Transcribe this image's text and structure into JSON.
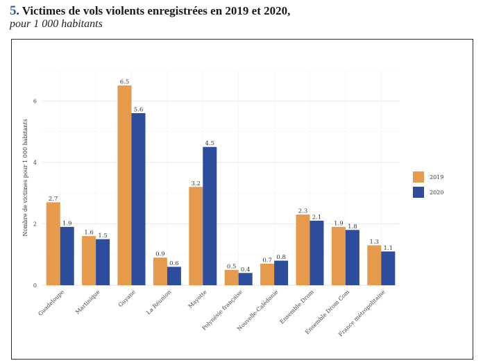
{
  "header": {
    "number": "5",
    "title": ". Victimes de vols violents enregistrées en 2019 et 2020,",
    "subtitle": "pour 1 000 habitants"
  },
  "colors": {
    "series_2019": "#e59a4c",
    "series_2020": "#2e4c9c",
    "grid": "#ececec"
  },
  "chart_data": {
    "type": "bar",
    "title": "Victimes de vols violents enregistrées en 2019 et 2020, pour 1 000 habitants",
    "xlabel": "",
    "ylabel": "Nombre de victimes pour 1 000 habitants",
    "ylim": [
      0,
      7
    ],
    "yticks": [
      "0",
      "2",
      "4",
      "6"
    ],
    "grid": true,
    "legend_position": "right",
    "categories": [
      "Guadeloupe",
      "Martinique",
      "Guyane",
      "La Réunion",
      "Mayotte",
      "Polynésie française",
      "Nouvelle-Calédonie",
      "Ensemble Drom",
      "Ensemble Drom Com",
      "France métropolitaine"
    ],
    "series": [
      {
        "name": "2019",
        "values": [
          2.7,
          1.6,
          6.5,
          0.9,
          3.2,
          0.5,
          0.7,
          2.3,
          1.9,
          1.3
        ],
        "labels": [
          "2.7",
          "1.6",
          "6.5",
          "0.9",
          "3.2",
          "0.5",
          "0.7",
          "2.3",
          "1.9",
          "1.3"
        ]
      },
      {
        "name": "2020",
        "values": [
          1.9,
          1.5,
          5.6,
          0.6,
          4.5,
          0.4,
          0.8,
          2.1,
          1.8,
          1.1
        ],
        "labels": [
          "1.9",
          "1.5",
          "5.6",
          "0.6",
          "4.5",
          "0.4",
          "0.8",
          "2.1",
          "1.8",
          "1.1"
        ]
      }
    ]
  }
}
